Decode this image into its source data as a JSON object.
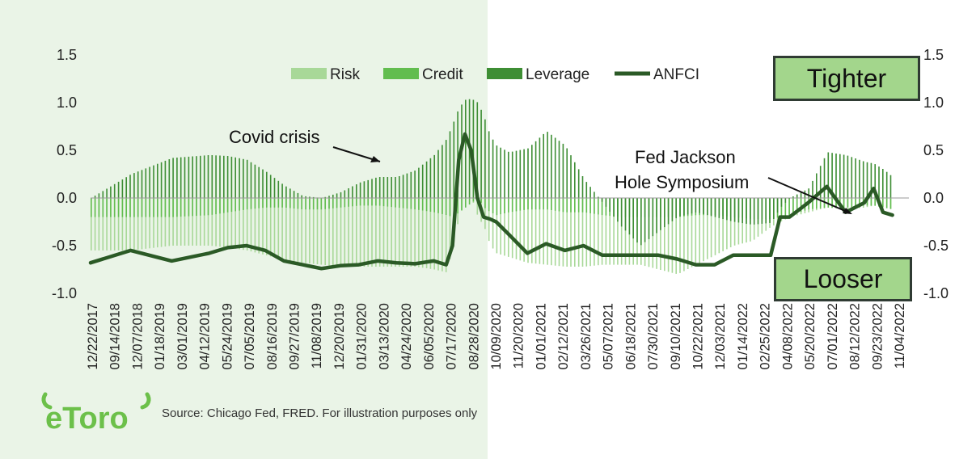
{
  "source_note": "Source: Chicago Fed, FRED. For illustration purposes only",
  "logo_text": "eToro",
  "tag_tighter": "Tighter",
  "tag_looser": "Looser",
  "annotations": {
    "covid": "Covid crisis",
    "fed_line1": "Fed Jackson",
    "fed_line2": "Hole Symposium"
  },
  "colors": {
    "risk": "#a8d898",
    "credit": "#62bd4f",
    "leverage": "#3e8e34",
    "anfci": "#2b5a26",
    "left_background": "#eaf4e7",
    "tag_fill": "#a3d68c"
  },
  "chart_data": {
    "type": "bar",
    "ylim": [
      -1.0,
      1.5
    ],
    "y_ticks": [
      "1.5",
      "1.0",
      "0.5",
      "0.0",
      "-0.5",
      "-1.0"
    ],
    "legend": [
      "Risk",
      "Credit",
      "Leverage",
      "ANFCI"
    ],
    "legend_position": "top",
    "x_tick_labels": [
      "12/22/2017",
      "09/14/2018",
      "12/07/2018",
      "01/18/2019",
      "03/01/2019",
      "04/12/2019",
      "05/24/2019",
      "07/05/2019",
      "08/16/2019",
      "09/27/2019",
      "11/08/2019",
      "12/20/2019",
      "01/31/2020",
      "03/13/2020",
      "04/24/2020",
      "06/05/2020",
      "07/17/2020",
      "08/28/2020",
      "10/09/2020",
      "11/20/2020",
      "01/01/2021",
      "02/12/2021",
      "03/26/2021",
      "05/07/2021",
      "06/18/2021",
      "07/30/2021",
      "09/10/2021",
      "10/22/2021",
      "12/03/2021",
      "01/14/2022",
      "02/25/2022",
      "04/08/2022",
      "05/20/2022",
      "07/01/2022",
      "08/12/2022",
      "09/23/2022",
      "11/04/2022"
    ],
    "x": [
      "12/22/2017",
      "03/22/2018",
      "06/22/2018",
      "09/14/2018",
      "10/26/2018",
      "12/07/2018",
      "01/18/2019",
      "03/01/2019",
      "04/12/2019",
      "05/24/2019",
      "07/05/2019",
      "08/16/2019",
      "09/27/2019",
      "11/08/2019",
      "12/20/2019",
      "01/31/2020",
      "02/28/2020",
      "03/13/2020",
      "03/27/2020",
      "04/10/2020",
      "04/24/2020",
      "05/08/2020",
      "05/22/2020",
      "06/05/2020",
      "06/19/2020",
      "07/17/2020",
      "08/28/2020",
      "10/09/2020",
      "11/20/2020",
      "01/01/2021",
      "02/12/2021",
      "03/26/2021",
      "05/07/2021",
      "06/18/2021",
      "07/30/2021",
      "09/10/2021",
      "10/22/2021",
      "12/03/2021",
      "01/14/2022",
      "02/25/2022",
      "03/18/2022",
      "04/08/2022",
      "05/20/2022",
      "07/01/2022",
      "08/12/2022",
      "09/23/2022",
      "10/14/2022",
      "11/04/2022",
      "11/25/2022"
    ],
    "series": [
      {
        "name": "Leverage",
        "values": [
          0.0,
          0.25,
          0.42,
          0.45,
          0.44,
          0.4,
          0.28,
          0.13,
          0.02,
          0.0,
          0.06,
          0.16,
          0.22,
          0.22,
          0.29,
          0.45,
          0.62,
          0.78,
          0.95,
          1.03,
          1.04,
          1.0,
          0.85,
          0.65,
          0.55,
          0.48,
          0.52,
          0.7,
          0.55,
          0.2,
          -0.05,
          -0.3,
          -0.5,
          -0.35,
          -0.2,
          -0.15,
          -0.2,
          -0.25,
          -0.28,
          -0.26,
          -0.1,
          0.0,
          0.1,
          0.48,
          0.45,
          0.38,
          0.36,
          0.3,
          0.22
        ]
      },
      {
        "name": "Credit",
        "values": [
          -0.2,
          -0.2,
          -0.2,
          -0.18,
          -0.15,
          -0.12,
          -0.1,
          -0.1,
          -0.12,
          -0.12,
          -0.1,
          -0.08,
          -0.08,
          -0.1,
          -0.12,
          -0.15,
          -0.18,
          -0.2,
          -0.15,
          -0.1,
          -0.05,
          0.0,
          -0.1,
          -0.15,
          -0.18,
          -0.15,
          -0.12,
          -0.12,
          -0.15,
          -0.15,
          -0.18,
          -0.2,
          -0.2,
          -0.2,
          -0.2,
          -0.18,
          -0.18,
          -0.2,
          -0.22,
          -0.22,
          -0.2,
          -0.18,
          -0.12,
          -0.1,
          -0.1,
          -0.08,
          -0.08,
          -0.1,
          -0.12
        ]
      },
      {
        "name": "Risk",
        "values": [
          -0.55,
          -0.55,
          -0.5,
          -0.5,
          -0.52,
          -0.55,
          -0.6,
          -0.65,
          -0.68,
          -0.7,
          -0.72,
          -0.72,
          -0.72,
          -0.72,
          -0.72,
          -0.75,
          -0.78,
          -0.5,
          -0.2,
          0.0,
          0.0,
          -0.2,
          -0.3,
          -0.5,
          -0.58,
          -0.62,
          -0.68,
          -0.7,
          -0.72,
          -0.72,
          -0.7,
          -0.7,
          -0.7,
          -0.75,
          -0.8,
          -0.7,
          -0.6,
          -0.5,
          -0.45,
          -0.3,
          -0.25,
          -0.2,
          -0.15,
          -0.1,
          -0.12,
          -0.1,
          -0.08,
          -0.1,
          -0.12
        ]
      },
      {
        "name": "ANFCI",
        "values": [
          -0.68,
          -0.55,
          -0.66,
          -0.58,
          -0.52,
          -0.5,
          -0.55,
          -0.66,
          -0.7,
          -0.74,
          -0.71,
          -0.7,
          -0.66,
          -0.68,
          -0.69,
          -0.66,
          -0.7,
          -0.5,
          0.4,
          0.67,
          0.5,
          0.0,
          -0.2,
          -0.22,
          -0.25,
          -0.38,
          -0.58,
          -0.48,
          -0.55,
          -0.5,
          -0.6,
          -0.6,
          -0.6,
          -0.6,
          -0.64,
          -0.7,
          -0.7,
          -0.6,
          -0.6,
          -0.6,
          -0.2,
          -0.2,
          -0.05,
          0.12,
          -0.15,
          -0.05,
          0.1,
          -0.15,
          -0.18
        ]
      }
    ]
  }
}
